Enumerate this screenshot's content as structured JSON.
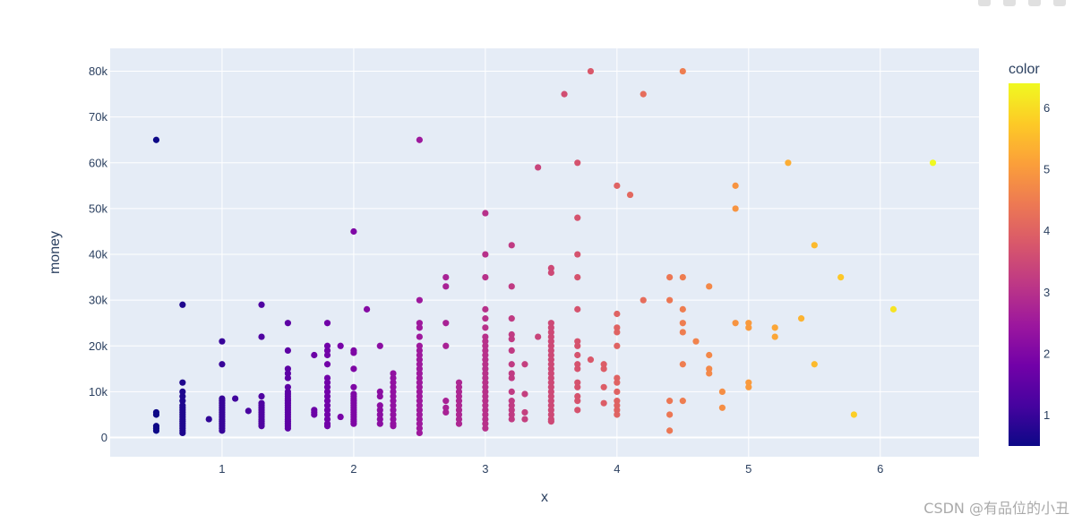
{
  "chart_data": {
    "type": "scatter",
    "xlabel": "x",
    "ylabel": "money",
    "colorbar_title": "color",
    "xlim": [
      0.15,
      6.75
    ],
    "ylim": [
      -4200,
      85000
    ],
    "x_ticks": [
      1,
      2,
      3,
      4,
      5,
      6
    ],
    "x_tick_labels": [
      "1",
      "2",
      "3",
      "4",
      "5",
      "6"
    ],
    "y_ticks": [
      0,
      10000,
      20000,
      30000,
      40000,
      50000,
      60000,
      70000,
      80000
    ],
    "y_tick_labels": [
      "0",
      "10k",
      "20k",
      "30k",
      "40k",
      "50k",
      "60k",
      "70k",
      "80k"
    ],
    "color_range": [
      0.5,
      6.4
    ],
    "colorbar_ticks": [
      1,
      2,
      3,
      4,
      5,
      6
    ],
    "colorbar_tick_labels": [
      "1",
      "2",
      "3",
      "4",
      "5",
      "6"
    ],
    "colorscale": [
      "#0d0887",
      "#46039f",
      "#7201a8",
      "#9c179e",
      "#bd3786",
      "#d8576b",
      "#ed7953",
      "#fb9f3a",
      "#fdca26",
      "#f0f921"
    ],
    "grid": true,
    "color_by": "x",
    "points": [
      [
        0.5,
        65000
      ],
      [
        0.5,
        5500
      ],
      [
        0.5,
        5000
      ],
      [
        0.5,
        2500
      ],
      [
        0.5,
        2000
      ],
      [
        0.5,
        1500
      ],
      [
        0.7,
        29000
      ],
      [
        0.7,
        12000
      ],
      [
        0.7,
        10000
      ],
      [
        0.7,
        9000
      ],
      [
        0.7,
        8000
      ],
      [
        0.7,
        7000
      ],
      [
        0.7,
        6500
      ],
      [
        0.7,
        6000
      ],
      [
        0.7,
        5500
      ],
      [
        0.7,
        5000
      ],
      [
        0.7,
        4500
      ],
      [
        0.7,
        4000
      ],
      [
        0.7,
        3500
      ],
      [
        0.7,
        3000
      ],
      [
        0.7,
        2500
      ],
      [
        0.7,
        2000
      ],
      [
        0.7,
        1500
      ],
      [
        0.7,
        1000
      ],
      [
        0.9,
        4000
      ],
      [
        1.0,
        21000
      ],
      [
        1.0,
        16000
      ],
      [
        1.0,
        8500
      ],
      [
        1.0,
        8000
      ],
      [
        1.0,
        7500
      ],
      [
        1.0,
        7000
      ],
      [
        1.0,
        6500
      ],
      [
        1.0,
        6000
      ],
      [
        1.0,
        5500
      ],
      [
        1.0,
        5000
      ],
      [
        1.0,
        4500
      ],
      [
        1.0,
        4000
      ],
      [
        1.0,
        3500
      ],
      [
        1.0,
        3000
      ],
      [
        1.0,
        2500
      ],
      [
        1.0,
        2000
      ],
      [
        1.0,
        1500
      ],
      [
        1.1,
        8500
      ],
      [
        1.2,
        5800
      ],
      [
        1.3,
        29000
      ],
      [
        1.3,
        22000
      ],
      [
        1.3,
        9000
      ],
      [
        1.3,
        7500
      ],
      [
        1.3,
        7000
      ],
      [
        1.3,
        6500
      ],
      [
        1.3,
        6000
      ],
      [
        1.3,
        5500
      ],
      [
        1.3,
        5000
      ],
      [
        1.3,
        4500
      ],
      [
        1.3,
        4000
      ],
      [
        1.3,
        3500
      ],
      [
        1.3,
        3000
      ],
      [
        1.3,
        2500
      ],
      [
        1.5,
        25000
      ],
      [
        1.5,
        19000
      ],
      [
        1.5,
        15000
      ],
      [
        1.5,
        14000
      ],
      [
        1.5,
        13000
      ],
      [
        1.5,
        11000
      ],
      [
        1.5,
        10000
      ],
      [
        1.5,
        9500
      ],
      [
        1.5,
        9000
      ],
      [
        1.5,
        8500
      ],
      [
        1.5,
        8000
      ],
      [
        1.5,
        7500
      ],
      [
        1.5,
        7000
      ],
      [
        1.5,
        6500
      ],
      [
        1.5,
        6000
      ],
      [
        1.5,
        5500
      ],
      [
        1.5,
        5000
      ],
      [
        1.5,
        4500
      ],
      [
        1.5,
        4000
      ],
      [
        1.5,
        3500
      ],
      [
        1.5,
        3000
      ],
      [
        1.5,
        2500
      ],
      [
        1.5,
        2000
      ],
      [
        1.7,
        18000
      ],
      [
        1.7,
        6000
      ],
      [
        1.7,
        5500
      ],
      [
        1.7,
        5000
      ],
      [
        1.8,
        25000
      ],
      [
        1.8,
        20000
      ],
      [
        1.8,
        19000
      ],
      [
        1.8,
        18000
      ],
      [
        1.8,
        16000
      ],
      [
        1.8,
        13000
      ],
      [
        1.8,
        12000
      ],
      [
        1.8,
        11000
      ],
      [
        1.8,
        10000
      ],
      [
        1.8,
        9000
      ],
      [
        1.8,
        8000
      ],
      [
        1.8,
        7000
      ],
      [
        1.8,
        6000
      ],
      [
        1.8,
        5000
      ],
      [
        1.8,
        4000
      ],
      [
        1.8,
        3000
      ],
      [
        1.8,
        2500
      ],
      [
        1.9,
        20000
      ],
      [
        1.9,
        4500
      ],
      [
        2.0,
        45000
      ],
      [
        2.0,
        19000
      ],
      [
        2.0,
        18500
      ],
      [
        2.0,
        15000
      ],
      [
        2.0,
        11000
      ],
      [
        2.0,
        9500
      ],
      [
        2.0,
        9000
      ],
      [
        2.0,
        8500
      ],
      [
        2.0,
        8000
      ],
      [
        2.0,
        7500
      ],
      [
        2.0,
        7000
      ],
      [
        2.0,
        6500
      ],
      [
        2.0,
        6000
      ],
      [
        2.0,
        5500
      ],
      [
        2.0,
        5000
      ],
      [
        2.0,
        4500
      ],
      [
        2.0,
        4000
      ],
      [
        2.0,
        3500
      ],
      [
        2.0,
        3000
      ],
      [
        2.1,
        28000
      ],
      [
        2.2,
        20000
      ],
      [
        2.2,
        10000
      ],
      [
        2.2,
        9000
      ],
      [
        2.2,
        7000
      ],
      [
        2.2,
        6000
      ],
      [
        2.2,
        5000
      ],
      [
        2.2,
        4000
      ],
      [
        2.2,
        3000
      ],
      [
        2.3,
        14000
      ],
      [
        2.3,
        13000
      ],
      [
        2.3,
        12000
      ],
      [
        2.3,
        11000
      ],
      [
        2.3,
        10000
      ],
      [
        2.3,
        9000
      ],
      [
        2.3,
        8000
      ],
      [
        2.3,
        7000
      ],
      [
        2.3,
        6000
      ],
      [
        2.3,
        5000
      ],
      [
        2.3,
        4000
      ],
      [
        2.3,
        3000
      ],
      [
        2.3,
        2500
      ],
      [
        2.5,
        65000
      ],
      [
        2.5,
        30000
      ],
      [
        2.5,
        25000
      ],
      [
        2.5,
        24000
      ],
      [
        2.5,
        22000
      ],
      [
        2.5,
        20000
      ],
      [
        2.5,
        19000
      ],
      [
        2.5,
        18000
      ],
      [
        2.5,
        17000
      ],
      [
        2.5,
        16000
      ],
      [
        2.5,
        15000
      ],
      [
        2.5,
        14000
      ],
      [
        2.5,
        13000
      ],
      [
        2.5,
        12000
      ],
      [
        2.5,
        11000
      ],
      [
        2.5,
        10000
      ],
      [
        2.5,
        9000
      ],
      [
        2.5,
        8000
      ],
      [
        2.5,
        7000
      ],
      [
        2.5,
        6000
      ],
      [
        2.5,
        5000
      ],
      [
        2.5,
        4000
      ],
      [
        2.5,
        3000
      ],
      [
        2.5,
        2000
      ],
      [
        2.5,
        1000
      ],
      [
        2.7,
        35000
      ],
      [
        2.7,
        33000
      ],
      [
        2.7,
        25000
      ],
      [
        2.7,
        20000
      ],
      [
        2.7,
        8000
      ],
      [
        2.7,
        6500
      ],
      [
        2.7,
        5500
      ],
      [
        2.8,
        12000
      ],
      [
        2.8,
        11000
      ],
      [
        2.8,
        10000
      ],
      [
        2.8,
        9000
      ],
      [
        2.8,
        8000
      ],
      [
        2.8,
        7000
      ],
      [
        2.8,
        6000
      ],
      [
        2.8,
        5000
      ],
      [
        2.8,
        4000
      ],
      [
        2.8,
        3000
      ],
      [
        3.0,
        49000
      ],
      [
        3.0,
        40000
      ],
      [
        3.0,
        35000
      ],
      [
        3.0,
        28000
      ],
      [
        3.0,
        26000
      ],
      [
        3.0,
        24000
      ],
      [
        3.0,
        22000
      ],
      [
        3.0,
        21000
      ],
      [
        3.0,
        20000
      ],
      [
        3.0,
        19000
      ],
      [
        3.0,
        18000
      ],
      [
        3.0,
        17000
      ],
      [
        3.0,
        16000
      ],
      [
        3.0,
        15000
      ],
      [
        3.0,
        14000
      ],
      [
        3.0,
        13000
      ],
      [
        3.0,
        12000
      ],
      [
        3.0,
        11000
      ],
      [
        3.0,
        10000
      ],
      [
        3.0,
        9000
      ],
      [
        3.0,
        8000
      ],
      [
        3.0,
        7000
      ],
      [
        3.0,
        6000
      ],
      [
        3.0,
        5000
      ],
      [
        3.0,
        4000
      ],
      [
        3.0,
        3000
      ],
      [
        3.0,
        2000
      ],
      [
        3.2,
        42000
      ],
      [
        3.2,
        33000
      ],
      [
        3.2,
        26000
      ],
      [
        3.2,
        22500
      ],
      [
        3.2,
        21500
      ],
      [
        3.2,
        19000
      ],
      [
        3.2,
        16000
      ],
      [
        3.2,
        14000
      ],
      [
        3.2,
        13000
      ],
      [
        3.2,
        10000
      ],
      [
        3.2,
        8000
      ],
      [
        3.2,
        7000
      ],
      [
        3.2,
        6000
      ],
      [
        3.2,
        5000
      ],
      [
        3.2,
        4000
      ],
      [
        3.3,
        16000
      ],
      [
        3.3,
        9500
      ],
      [
        3.3,
        5500
      ],
      [
        3.3,
        4000
      ],
      [
        3.4,
        59000
      ],
      [
        3.4,
        22000
      ],
      [
        3.5,
        37000
      ],
      [
        3.5,
        36000
      ],
      [
        3.5,
        25000
      ],
      [
        3.5,
        24000
      ],
      [
        3.5,
        23000
      ],
      [
        3.5,
        22000
      ],
      [
        3.5,
        21000
      ],
      [
        3.5,
        20000
      ],
      [
        3.5,
        19000
      ],
      [
        3.5,
        18000
      ],
      [
        3.5,
        17000
      ],
      [
        3.5,
        16000
      ],
      [
        3.5,
        15000
      ],
      [
        3.5,
        14000
      ],
      [
        3.5,
        13000
      ],
      [
        3.5,
        12000
      ],
      [
        3.5,
        11000
      ],
      [
        3.5,
        10000
      ],
      [
        3.5,
        9000
      ],
      [
        3.5,
        8000
      ],
      [
        3.5,
        7000
      ],
      [
        3.5,
        6000
      ],
      [
        3.5,
        5000
      ],
      [
        3.5,
        4000
      ],
      [
        3.5,
        3500
      ],
      [
        3.6,
        75000
      ],
      [
        3.7,
        60000
      ],
      [
        3.7,
        48000
      ],
      [
        3.7,
        40000
      ],
      [
        3.7,
        35000
      ],
      [
        3.7,
        28000
      ],
      [
        3.7,
        21000
      ],
      [
        3.7,
        20000
      ],
      [
        3.7,
        18000
      ],
      [
        3.7,
        16000
      ],
      [
        3.7,
        15000
      ],
      [
        3.7,
        12000
      ],
      [
        3.7,
        11000
      ],
      [
        3.7,
        9000
      ],
      [
        3.7,
        8000
      ],
      [
        3.7,
        6000
      ],
      [
        3.8,
        80000
      ],
      [
        3.8,
        17000
      ],
      [
        3.9,
        16000
      ],
      [
        3.9,
        15000
      ],
      [
        3.9,
        11000
      ],
      [
        3.9,
        7500
      ],
      [
        4.0,
        55000
      ],
      [
        4.0,
        27000
      ],
      [
        4.0,
        24000
      ],
      [
        4.0,
        23000
      ],
      [
        4.0,
        20000
      ],
      [
        4.0,
        13000
      ],
      [
        4.0,
        12000
      ],
      [
        4.0,
        10000
      ],
      [
        4.0,
        8000
      ],
      [
        4.0,
        7000
      ],
      [
        4.0,
        6000
      ],
      [
        4.0,
        5000
      ],
      [
        4.1,
        53000
      ],
      [
        4.2,
        75000
      ],
      [
        4.2,
        30000
      ],
      [
        4.4,
        35000
      ],
      [
        4.4,
        30000
      ],
      [
        4.4,
        8000
      ],
      [
        4.4,
        5000
      ],
      [
        4.4,
        1500
      ],
      [
        4.5,
        80000
      ],
      [
        4.5,
        35000
      ],
      [
        4.5,
        28000
      ],
      [
        4.5,
        25000
      ],
      [
        4.5,
        23000
      ],
      [
        4.5,
        16000
      ],
      [
        4.5,
        8000
      ],
      [
        4.6,
        21000
      ],
      [
        4.7,
        33000
      ],
      [
        4.7,
        18000
      ],
      [
        4.7,
        15000
      ],
      [
        4.7,
        14000
      ],
      [
        4.8,
        10000
      ],
      [
        4.8,
        6500
      ],
      [
        4.9,
        55000
      ],
      [
        4.9,
        50000
      ],
      [
        4.9,
        25000
      ],
      [
        5.0,
        25000
      ],
      [
        5.0,
        24000
      ],
      [
        5.0,
        12000
      ],
      [
        5.0,
        11000
      ],
      [
        5.2,
        24000
      ],
      [
        5.2,
        22000
      ],
      [
        5.3,
        60000
      ],
      [
        5.4,
        26000
      ],
      [
        5.5,
        42000
      ],
      [
        5.5,
        16000
      ],
      [
        5.7,
        35000
      ],
      [
        5.8,
        5000
      ],
      [
        6.1,
        28000
      ],
      [
        6.4,
        60000
      ]
    ]
  },
  "watermark": "CSDN @有品位的小丑"
}
